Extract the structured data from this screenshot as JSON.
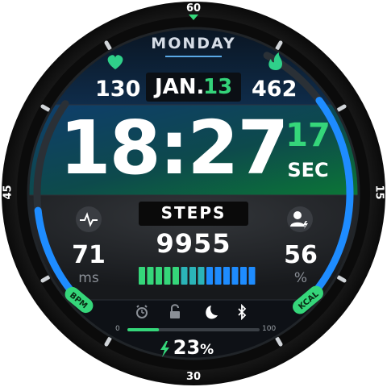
{
  "colors": {
    "bezel": "#141414",
    "dial_dark": "#0d1116",
    "time_bg_top": "#113a66",
    "time_bg_green": "#0d7a36",
    "accent_green": "#35d67a",
    "accent_blue": "#1c8cff",
    "heart": "#2fd08a",
    "flame": "#2fd08a",
    "steps_bar_green": "#35d67a",
    "steps_bar_blue": "#1e8cff"
  },
  "bezel": {
    "top": "60",
    "right": "15",
    "bottom": "30",
    "left": "45"
  },
  "header": {
    "day": "MONDAY"
  },
  "heart_rate": {
    "icon": "heart-icon",
    "value": "130",
    "gauge_label": "BPM"
  },
  "calories": {
    "icon": "flame-icon",
    "value": "462",
    "gauge_label": "KCAL"
  },
  "date": {
    "month": "JAN.",
    "day": "13"
  },
  "time": {
    "hhmm": "18:27",
    "seconds": "17",
    "seconds_label": "SEC"
  },
  "hrv": {
    "icon": "pulse-icon",
    "value": "71",
    "unit": "ms"
  },
  "goal": {
    "icon": "person-add-icon",
    "value": "56",
    "unit": "%"
  },
  "steps": {
    "label": "STEPS",
    "value": "9955",
    "bars_filled": 14,
    "bars_total": 14
  },
  "status_icons": [
    "alarm-icon",
    "lock-icon",
    "moon-icon",
    "bluetooth-icon"
  ],
  "battery": {
    "icon": "bolt-icon",
    "value": "23",
    "unit": "%",
    "level": 0.23,
    "scale_min": "0",
    "scale_max": "100"
  },
  "gauges": {
    "left_fill": 0.45,
    "right_fill": 0.75
  }
}
